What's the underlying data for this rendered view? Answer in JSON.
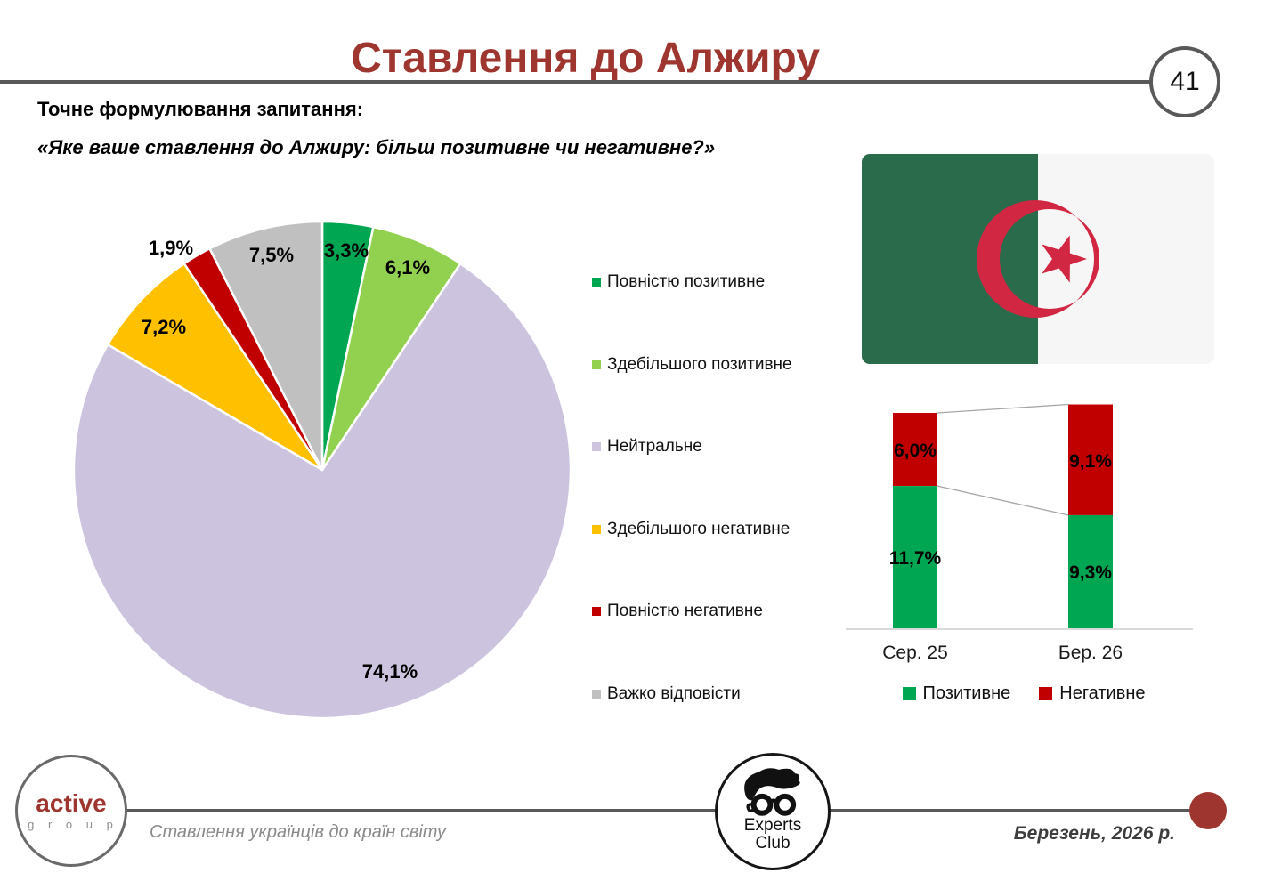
{
  "slide": {
    "title": "Ставлення до Алжиру",
    "page_number": "41",
    "question_label": "Точне формулювання запитання:",
    "question_quote": "«Яке ваше ставлення до Алжиру: більш позитивне чи негативне?»"
  },
  "flag": {
    "name": "algeria-flag",
    "green": "#2A6B4B",
    "white": "#F6F6F6",
    "red": "#D22742"
  },
  "chart_data": [
    {
      "type": "pie",
      "labels": [
        "Повністю позитивне",
        "Здебільшого позитивне",
        "Нейтральне",
        "Здебільшого негативне",
        "Повністю негативне",
        "Важко відповісти"
      ],
      "values": [
        3.3,
        6.1,
        74.1,
        7.2,
        1.9,
        7.5
      ],
      "value_labels": [
        "3,3%",
        "6,1%",
        "74,1%",
        "7,2%",
        "1,9%",
        "7,5%"
      ],
      "colors": [
        "#00A651",
        "#92D050",
        "#CCC3DE",
        "#FFC000",
        "#C00000",
        "#C0C0C0"
      ],
      "start_angle_deg": 0,
      "direction": "clockwise",
      "legend_position": "right"
    },
    {
      "type": "bar",
      "subtype": "stacked",
      "categories": [
        "Сер. 25",
        "Бер. 26"
      ],
      "series": [
        {
          "name": "Позитивне",
          "color": "#00A651",
          "values": [
            11.7,
            9.3
          ],
          "value_labels": [
            "11,7%",
            "9,3%"
          ]
        },
        {
          "name": "Негативне",
          "color": "#C00000",
          "values": [
            6.0,
            9.1
          ],
          "value_labels": [
            "6,0%",
            "9,1%"
          ]
        }
      ],
      "ylim": [
        0,
        20
      ],
      "grid": false,
      "legend_position": "bottom",
      "connector_lines": true
    }
  ],
  "footer": {
    "brand_name": "active",
    "brand_sub": "g r o u p",
    "caption": "Ставлення українців до країн світу",
    "experts_line1": "Experts",
    "experts_line2": "Club",
    "date": "Березень, 2026 р."
  },
  "colors": {
    "title_red": "#9E352E",
    "rule_gray": "#595959",
    "axis_gray": "#D9D9D9",
    "connector_gray": "#A6A6A6"
  }
}
